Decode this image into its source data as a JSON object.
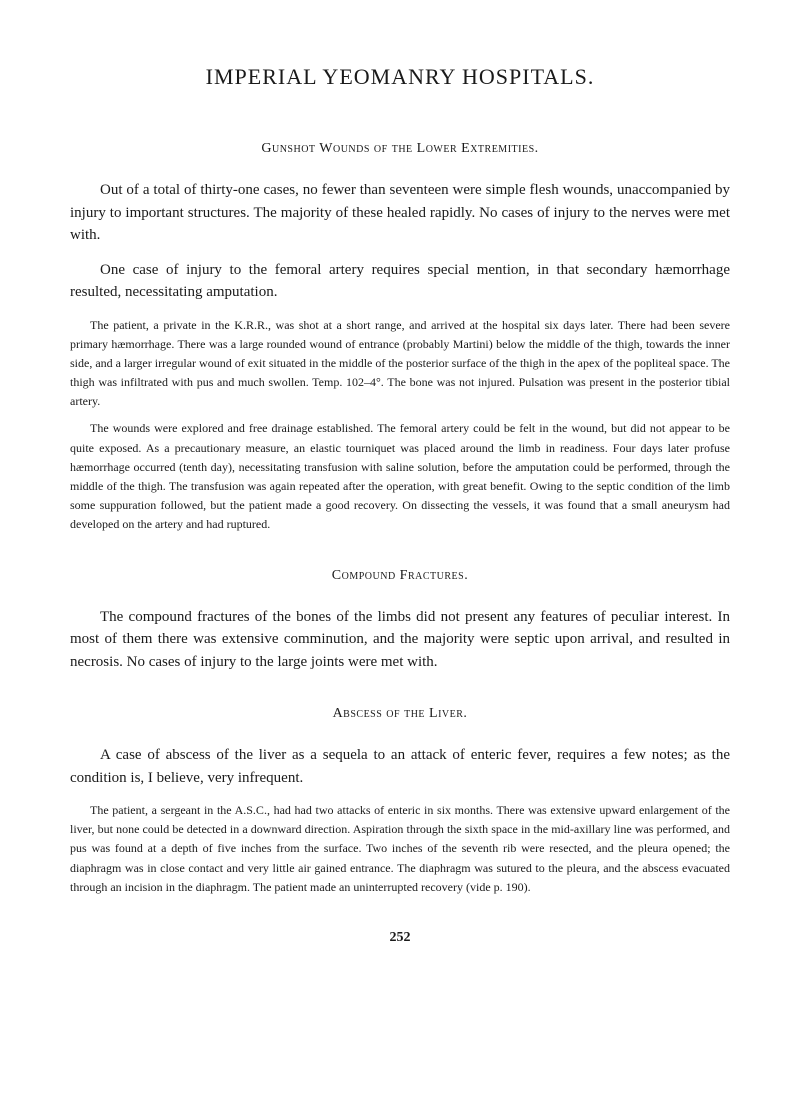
{
  "title": "IMPERIAL YEOMANRY HOSPITALS.",
  "section1": {
    "heading": "Gunshot Wounds of the Lower Extremities.",
    "para1": "Out of a total of thirty-one cases, no fewer than seventeen were simple flesh wounds, unaccompanied by injury to important structures. The majority of these healed rapidly. No cases of injury to the nerves were met with.",
    "para2": "One case of injury to the femoral artery requires special mention, in that secondary hæmorrhage resulted, necessitating amputation.",
    "detail1": "The patient, a private in the K.R.R., was shot at a short range, and arrived at the hospital six days later. There had been severe primary hæmorrhage. There was a large rounded wound of entrance (probably Martini) below the middle of the thigh, towards the inner side, and a larger irregular wound of exit situated in the middle of the posterior surface of the thigh in the apex of the popliteal space. The thigh was infiltrated with pus and much swollen. Temp. 102–4°. The bone was not injured. Pulsation was present in the posterior tibial artery.",
    "detail2": "The wounds were explored and free drainage established. The femoral artery could be felt in the wound, but did not appear to be quite exposed. As a precautionary measure, an elastic tourniquet was placed around the limb in readiness. Four days later profuse hæmorrhage occurred (tenth day), necessitating transfusion with saline solution, before the amputation could be performed, through the middle of the thigh. The transfusion was again repeated after the operation, with great benefit. Owing to the septic condition of the limb some suppuration followed, but the patient made a good recovery. On dissecting the vessels, it was found that a small aneurysm had developed on the artery and had ruptured."
  },
  "section2": {
    "heading": "Compound Fractures.",
    "para1": "The compound fractures of the bones of the limbs did not present any features of peculiar interest. In most of them there was extensive comminution, and the majority were septic upon arrival, and resulted in necrosis. No cases of injury to the large joints were met with."
  },
  "section3": {
    "heading": "Abscess of the Liver.",
    "para1": "A case of abscess of the liver as a sequela to an attack of enteric fever, requires a few notes; as the condition is, I believe, very infrequent.",
    "detail1": "The patient, a sergeant in the A.S.C., had had two attacks of enteric in six months. There was extensive upward enlargement of the liver, but none could be detected in a downward direction. Aspiration through the sixth space in the mid-axillary line was performed, and pus was found at a depth of five inches from the surface. Two inches of the seventh rib were resected, and the pleura opened; the diaphragm was in close contact and very little air gained entrance. The diaphragm was sutured to the pleura, and the abscess evacuated through an incision in the diaphragm. The patient made an uninterrupted recovery (vide p. 190)."
  },
  "pageNumber": "252"
}
